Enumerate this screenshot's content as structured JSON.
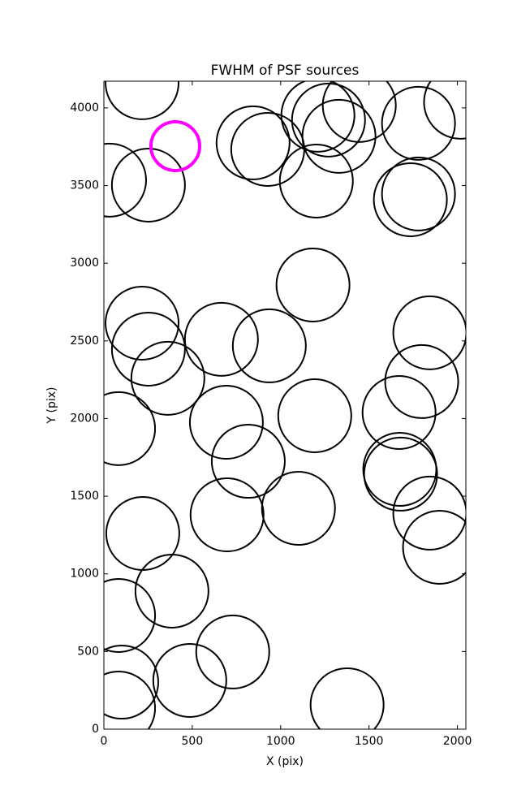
{
  "chart_data": {
    "type": "scatter",
    "title": "FWHM of PSF sources",
    "x_label": "X (pix)",
    "y_label": "Y (pix)",
    "x": [
      216,
      32,
      252,
      404,
      844,
      927,
      1211,
      1271,
      1445,
      1330,
      1202,
      2018,
      1780,
      1780,
      1734,
      1183,
      216,
      252,
      362,
      665,
      936,
      1844,
      1798,
      1670,
      83,
      693,
      1193,
      817,
      1674,
      1679,
      1101,
      697,
      1844,
      1899,
      220,
      385,
      83,
      101,
      83,
      486,
      729,
      1376
    ],
    "values": [
      4162,
      3535,
      3503,
      3754,
      3775,
      3733,
      3953,
      3922,
      4016,
      3817,
      3529,
      4037,
      3901,
      3446,
      3409,
      2860,
      2614,
      2447,
      2259,
      2510,
      2468,
      2552,
      2238,
      2039,
      1935,
      1976,
      2018,
      1725,
      1673,
      1642,
      1422,
      1380,
      1391,
      1171,
      1260,
      889,
      732,
      303,
      136,
      314,
      497,
      157
    ],
    "colors": [
      "#000000",
      "#000000",
      "#000000",
      "#ff00ff",
      "#000000",
      "#000000",
      "#000000",
      "#000000",
      "#000000",
      "#000000",
      "#000000",
      "#000000",
      "#000000",
      "#000000",
      "#000000",
      "#000000",
      "#000000",
      "#000000",
      "#000000",
      "#000000",
      "#000000",
      "#000000",
      "#000000",
      "#000000",
      "#000000",
      "#000000",
      "#000000",
      "#000000",
      "#000000",
      "#000000",
      "#000000",
      "#000000",
      "#000000",
      "#000000",
      "#000000",
      "#000000",
      "#000000",
      "#000000",
      "#000000",
      "#000000",
      "#000000",
      "#000000"
    ],
    "xlim": [
      0,
      2048
    ],
    "ylim": [
      0,
      4172
    ],
    "xticks": [
      0,
      500,
      1000,
      1500,
      2000
    ],
    "yticks": [
      0,
      500,
      1000,
      1500,
      2000,
      2500,
      3000,
      3500,
      4000
    ]
  }
}
